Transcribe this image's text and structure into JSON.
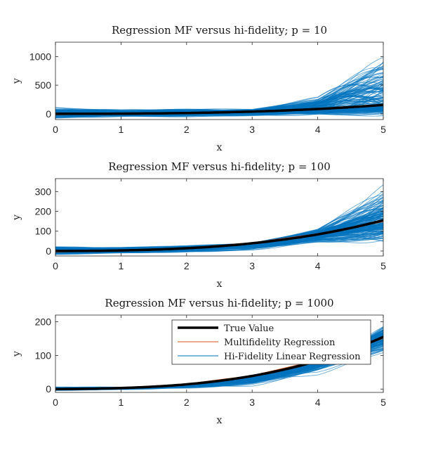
{
  "colors": {
    "true_value": "#000000",
    "multifidelity": "#D95319",
    "hifi": "#0072BD"
  },
  "legend": {
    "entries": [
      "True Value",
      "Multifidelity Regression",
      "Hi-Fidelity Linear Regression"
    ],
    "placement": "upper-right of third panel"
  },
  "chart_data": [
    {
      "type": "line",
      "title": "Regression MF versus hi-fidelity; p = 10",
      "xlabel": "x",
      "ylabel": "y",
      "xlim": [
        0,
        5
      ],
      "ylim": [
        -100,
        1250
      ],
      "xticks": [
        0,
        1,
        2,
        3,
        4,
        5
      ],
      "yticks": [
        0,
        500,
        1000
      ],
      "true_function": "y = x^3 + x^2 + x (approx.)",
      "series": [
        {
          "name": "True Value",
          "x": [
            0,
            1,
            2,
            3,
            4,
            5
          ],
          "y": [
            0,
            3,
            14,
            39,
            84,
            155
          ]
        },
        {
          "name": "Multifidelity Regression",
          "x": [
            0,
            1,
            2,
            3,
            4,
            5
          ],
          "y": [
            -10,
            4,
            16,
            37,
            88,
            160
          ]
        },
        {
          "name": "Hi-Fidelity Linear Regression",
          "envelope_max": [
            140,
            80,
            100,
            90,
            320,
            1200
          ],
          "envelope_min": [
            -90,
            -60,
            -60,
            -50,
            -40,
            -60
          ]
        }
      ]
    },
    {
      "type": "line",
      "title": "Regression MF versus hi-fidelity; p = 100",
      "xlabel": "x",
      "ylabel": "y",
      "xlim": [
        0,
        5
      ],
      "ylim": [
        -25,
        365
      ],
      "xticks": [
        0,
        1,
        2,
        3,
        4,
        5
      ],
      "yticks": [
        0,
        100,
        200,
        300
      ],
      "series": [
        {
          "name": "True Value",
          "x": [
            0,
            1,
            2,
            3,
            4,
            5
          ],
          "y": [
            0,
            3,
            14,
            39,
            84,
            155
          ]
        },
        {
          "name": "Multifidelity Regression",
          "x": [
            0,
            1,
            2,
            3,
            4,
            5
          ],
          "y": [
            -3,
            4,
            14,
            40,
            85,
            150
          ]
        },
        {
          "name": "Hi-Fidelity Linear Regression",
          "envelope_max": [
            30,
            25,
            30,
            40,
            120,
            360
          ],
          "envelope_min": [
            -20,
            -15,
            -10,
            0,
            30,
            20
          ]
        }
      ]
    },
    {
      "type": "line",
      "title": "Regression MF versus hi-fidelity; p = 1000",
      "xlabel": "x",
      "ylabel": "y",
      "xlim": [
        0,
        5
      ],
      "ylim": [
        -10,
        220
      ],
      "xticks": [
        0,
        1,
        2,
        3,
        4,
        5
      ],
      "yticks": [
        0,
        100,
        200
      ],
      "series": [
        {
          "name": "True Value",
          "x": [
            0,
            1,
            2,
            3,
            4,
            5
          ],
          "y": [
            0,
            3,
            14,
            39,
            84,
            155
          ]
        },
        {
          "name": "Multifidelity Regression",
          "x": [
            0,
            1,
            2,
            3,
            4,
            5
          ],
          "y": [
            0,
            3,
            14,
            39,
            84,
            152
          ]
        },
        {
          "name": "Hi-Fidelity Linear Regression",
          "envelope_max": [
            8,
            6,
            8,
            12,
            60,
            195
          ],
          "envelope_min": [
            -5,
            -3,
            0,
            5,
            35,
            100
          ]
        }
      ]
    }
  ]
}
